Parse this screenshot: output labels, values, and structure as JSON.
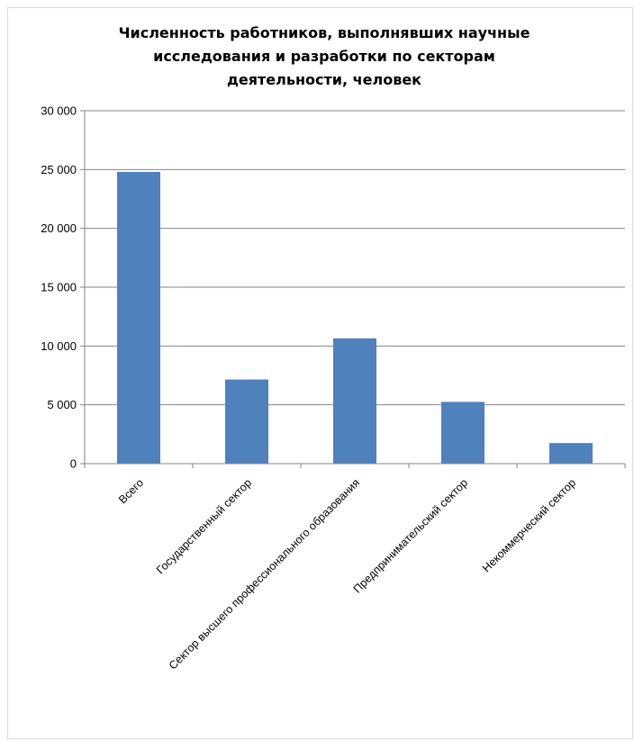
{
  "chart_data": {
    "type": "bar",
    "title_lines": [
      "Численность работников, выполнявших научные",
      "исследования и разработки по секторам",
      "деятельности, человек"
    ],
    "categories": [
      "Всего",
      "Государственный сектор",
      "Сектор высшего профессионального образования",
      "Предпринимательский сектор",
      "Некоммерческий сектор"
    ],
    "values": [
      24800,
      7150,
      10650,
      5250,
      1750
    ],
    "ylim": [
      0,
      30000
    ],
    "yticks": [
      0,
      5000,
      10000,
      15000,
      20000,
      25000,
      30000
    ],
    "ytick_labels": [
      "0",
      "5 000",
      "10 000",
      "15 000",
      "20 000",
      "25 000",
      "30 000"
    ],
    "grid": true,
    "legend": "none",
    "bar_color": "#4f81bd"
  }
}
